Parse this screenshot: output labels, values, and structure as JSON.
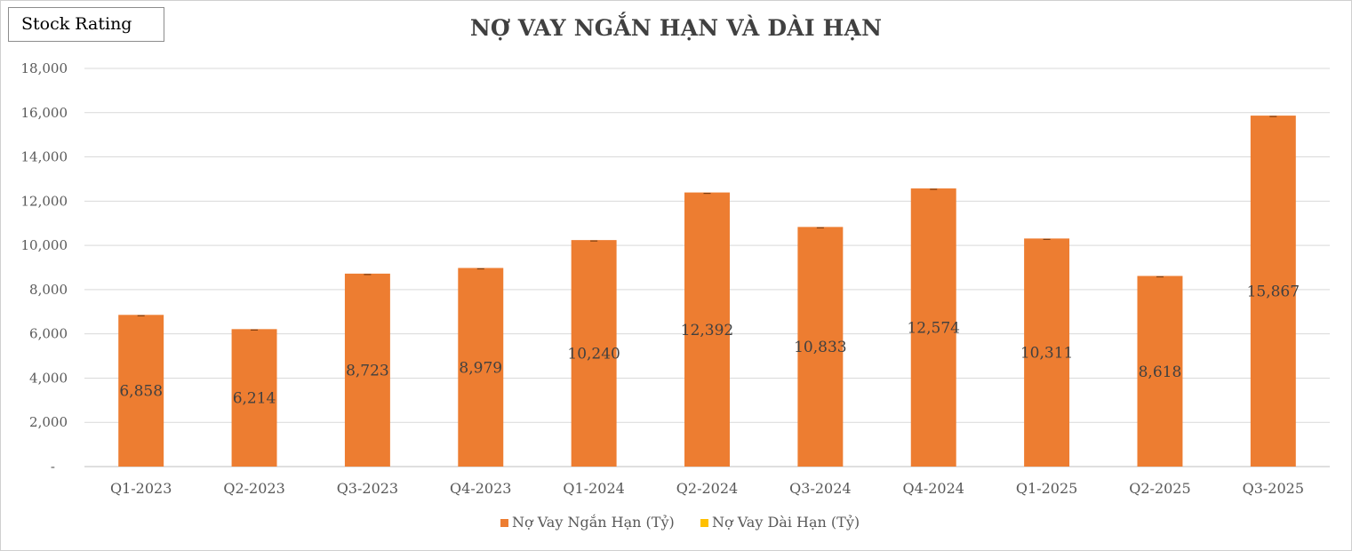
{
  "badge": {
    "label": "Stock Rating"
  },
  "chart_data": {
    "type": "bar",
    "title": "NỢ VAY NGẮN HẠN VÀ DÀI HẠN",
    "xlabel": "",
    "ylabel": "",
    "ylim": [
      0,
      18000
    ],
    "y_tick_values": [
      0,
      2000,
      4000,
      6000,
      8000,
      10000,
      12000,
      14000,
      16000,
      18000
    ],
    "y_tick_labels": [
      "-",
      "2,000",
      "4,000",
      "6,000",
      "8,000",
      "10,000",
      "12,000",
      "14,000",
      "16,000",
      "18,000"
    ],
    "grid": true,
    "legend_position": "bottom",
    "stacked": true,
    "categories": [
      "Q1-2023",
      "Q2-2023",
      "Q3-2023",
      "Q4-2023",
      "Q1-2024",
      "Q2-2024",
      "Q3-2024",
      "Q4-2024",
      "Q1-2025",
      "Q2-2025",
      "Q3-2025"
    ],
    "series": [
      {
        "name": "Nợ Vay Ngắn Hạn (Tỷ)",
        "color": "#ED7D31",
        "values": [
          6858,
          6214,
          8723,
          8979,
          10240,
          12392,
          10833,
          12574,
          10311,
          8618,
          15867
        ],
        "data_labels": [
          "6,858",
          "6,214",
          "8,723",
          "8,979",
          "10,240",
          "12,392",
          "10,833",
          "12,574",
          "10,311",
          "8,618",
          "15,867"
        ]
      },
      {
        "name": "Nợ Vay Dài Hạn (Tỷ)",
        "color": "#FFC000",
        "values": [
          0,
          0,
          0,
          0,
          0,
          0,
          0,
          0,
          0,
          0,
          0
        ]
      }
    ]
  }
}
